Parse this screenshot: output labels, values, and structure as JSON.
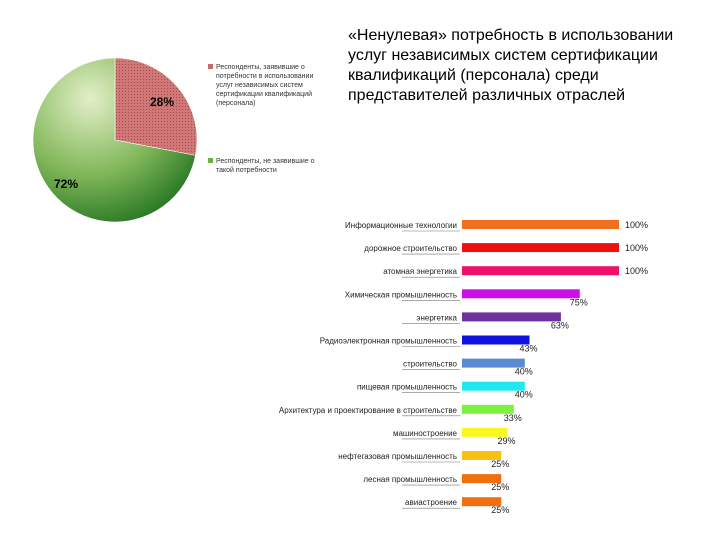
{
  "title": "«Ненулевая» потребность в использовании услуг независимых систем сертификации квалификаций (персонала) среди представителей различных отраслей",
  "chart_data": [
    {
      "type": "pie",
      "slices": [
        {
          "label": "28%",
          "value": 28,
          "legend": "Респонденты, заявившие о потребности в использовании услуг независимых систем сертификации квалификаций (персонала)",
          "color": "#c96b6b"
        },
        {
          "label": "72%",
          "value": 72,
          "legend": "Респонденты, не заявившие о такой потребности",
          "color": "#2e8b2e"
        }
      ],
      "legend_position": "right"
    },
    {
      "type": "bar",
      "orientation": "horizontal",
      "categories": [
        "Информационные технологии",
        "дорожное строительство",
        "атомная энергетика",
        "Химическая промышленность",
        "энергетика",
        "Радиоэлектронная промышленность",
        "строительство",
        "пищевая промышленность",
        "Архитектура и проектирование в строительстве",
        "машиностроение",
        "нефтегазовая промышленность",
        "лесная промышленность",
        "авиастроение"
      ],
      "values": [
        100,
        100,
        100,
        75,
        63,
        43,
        40,
        40,
        33,
        29,
        25,
        25,
        25
      ],
      "value_labels": [
        "100%",
        "100%",
        "100%",
        "75%",
        "63%",
        "43%",
        "40%",
        "40%",
        "33%",
        "29%",
        "25%",
        "25%",
        "25%"
      ],
      "colors": [
        "#f07020",
        "#ee1111",
        "#f0106a",
        "#cc10e8",
        "#7030a0",
        "#1010e0",
        "#5a8ad0",
        "#20e8f0",
        "#80f040",
        "#f8f820",
        "#f8c010",
        "#f07010",
        "#f07010"
      ],
      "xlim": [
        0,
        100
      ]
    }
  ]
}
